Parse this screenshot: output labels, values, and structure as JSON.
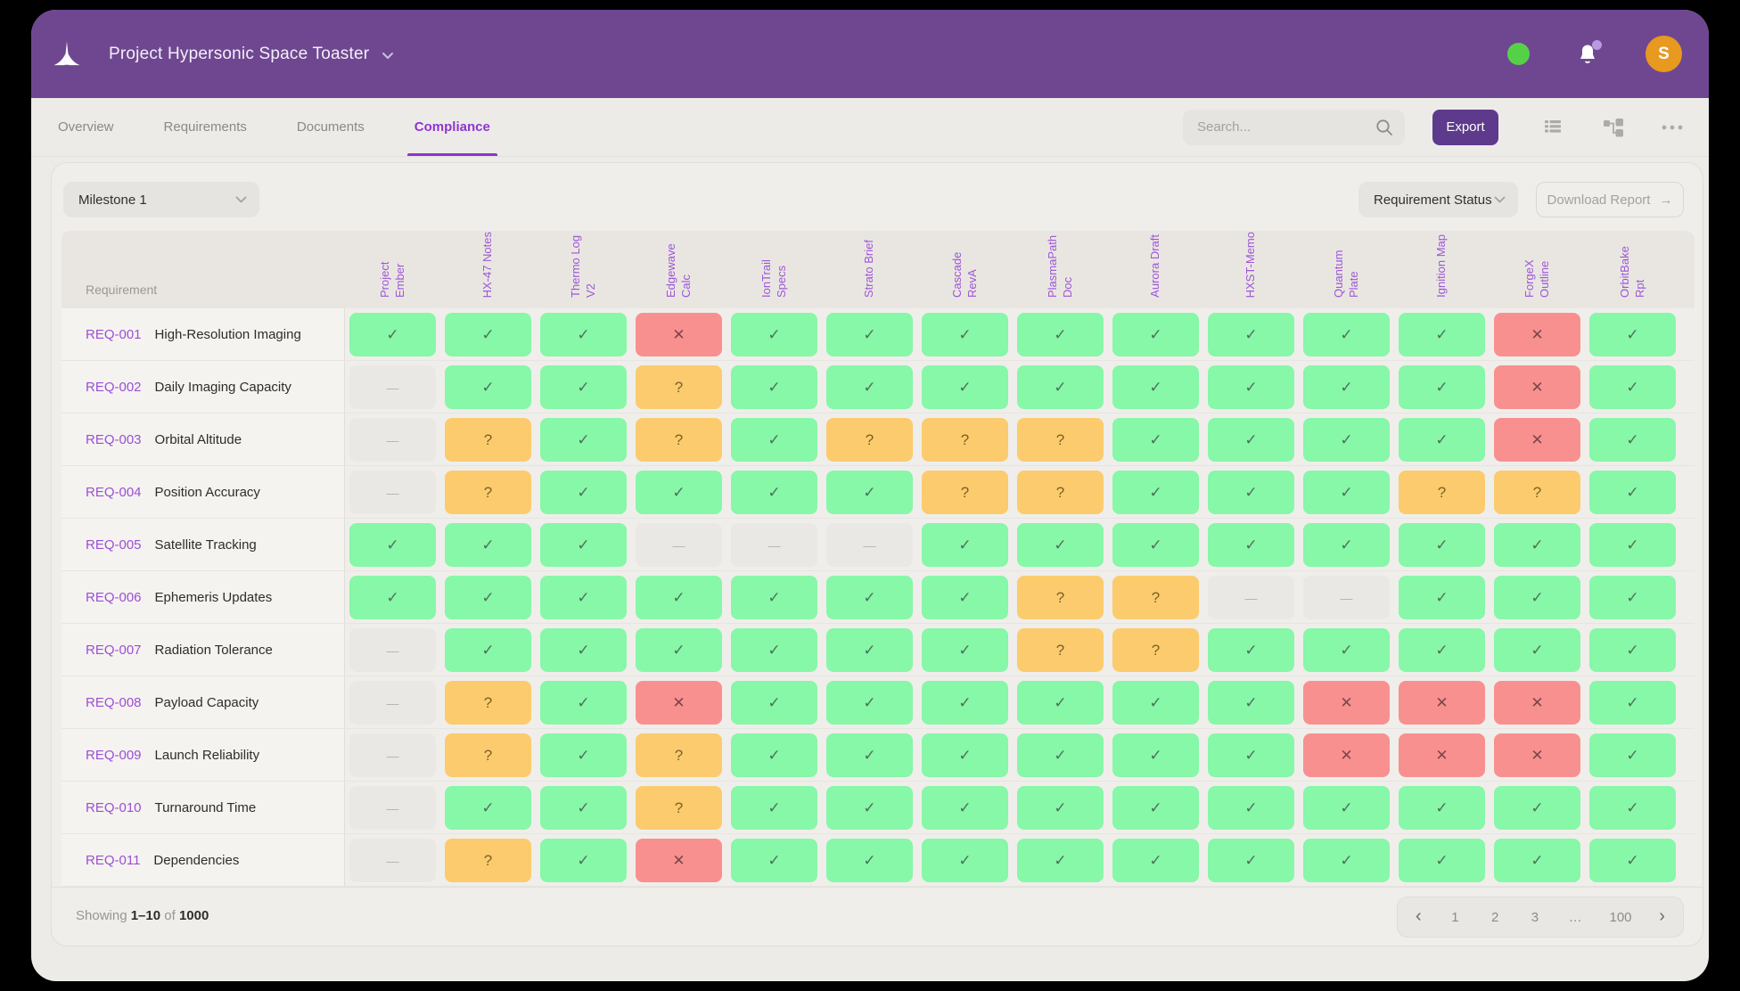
{
  "app": {
    "title": "Project Hypersonic Space Toaster",
    "avatar_initial": "S",
    "colors": {
      "appbar": "#6f4791",
      "accent": "#8e35cf",
      "export": "#5d3a8c",
      "status_dot": "#56d147",
      "avatar": "#e8991f"
    }
  },
  "tabs": [
    {
      "label": "Overview",
      "active": false
    },
    {
      "label": "Requirements",
      "active": false
    },
    {
      "label": "Documents",
      "active": false
    },
    {
      "label": "Compliance",
      "active": true
    }
  ],
  "toolbar": {
    "search_placeholder": "Search...",
    "export_label": "Export"
  },
  "filters": {
    "milestone_value": "Milestone 1",
    "status_filter_value": "Requirement Status",
    "download_label": "Download Report",
    "download_arrow": "→"
  },
  "table": {
    "corner_label": "Requirement",
    "columns": [
      "Project Ember",
      "HX-47 Notes",
      "Thermo Log V2",
      "Edgewave Calc",
      "IonTrail Specs",
      "Strato Brief",
      "Cascade RevA",
      "PlasmaPath Doc",
      "Aurora Draft",
      "HXST-Memo",
      "Quantum Plate",
      "Ignition Map",
      "ForgeX Outline",
      "OrbitBake Rpt"
    ],
    "status_glyphs": {
      "check": "✓",
      "cross": "✕",
      "question": "?",
      "dash": "—"
    },
    "status_colors": {
      "check": "#87f7a8",
      "cross": "#f99090",
      "question": "#fbcb6d",
      "dash": "#eae8e5"
    },
    "rows": [
      {
        "id": "REQ-001",
        "name": "High-Resolution Imaging",
        "statuses": [
          "check",
          "check",
          "check",
          "cross",
          "check",
          "check",
          "check",
          "check",
          "check",
          "check",
          "check",
          "check",
          "cross",
          "check"
        ]
      },
      {
        "id": "REQ-002",
        "name": "Daily Imaging Capacity",
        "statuses": [
          "dash",
          "check",
          "check",
          "question",
          "check",
          "check",
          "check",
          "check",
          "check",
          "check",
          "check",
          "check",
          "cross",
          "check"
        ]
      },
      {
        "id": "REQ-003",
        "name": "Orbital Altitude",
        "statuses": [
          "dash",
          "question",
          "check",
          "question",
          "check",
          "question",
          "question",
          "question",
          "check",
          "check",
          "check",
          "check",
          "cross",
          "check"
        ]
      },
      {
        "id": "REQ-004",
        "name": "Position Accuracy",
        "statuses": [
          "dash",
          "question",
          "check",
          "check",
          "check",
          "check",
          "question",
          "question",
          "check",
          "check",
          "check",
          "question",
          "question",
          "check"
        ]
      },
      {
        "id": "REQ-005",
        "name": "Satellite Tracking",
        "statuses": [
          "check",
          "check",
          "check",
          "dash",
          "dash",
          "dash",
          "check",
          "check",
          "check",
          "check",
          "check",
          "check",
          "check",
          "check"
        ]
      },
      {
        "id": "REQ-006",
        "name": "Ephemeris Updates",
        "statuses": [
          "check",
          "check",
          "check",
          "check",
          "check",
          "check",
          "check",
          "question",
          "question",
          "dash",
          "dash",
          "check",
          "check",
          "check"
        ]
      },
      {
        "id": "REQ-007",
        "name": "Radiation Tolerance",
        "statuses": [
          "dash",
          "check",
          "check",
          "check",
          "check",
          "check",
          "check",
          "question",
          "question",
          "check",
          "check",
          "check",
          "check",
          "check"
        ]
      },
      {
        "id": "REQ-008",
        "name": "Payload Capacity",
        "statuses": [
          "dash",
          "question",
          "check",
          "cross",
          "check",
          "check",
          "check",
          "check",
          "check",
          "check",
          "cross",
          "cross",
          "cross",
          "check"
        ]
      },
      {
        "id": "REQ-009",
        "name": "Launch Reliability",
        "statuses": [
          "dash",
          "question",
          "check",
          "question",
          "check",
          "check",
          "check",
          "check",
          "check",
          "check",
          "cross",
          "cross",
          "cross",
          "check"
        ]
      },
      {
        "id": "REQ-010",
        "name": "Turnaround Time",
        "statuses": [
          "dash",
          "check",
          "check",
          "question",
          "check",
          "check",
          "check",
          "check",
          "check",
          "check",
          "check",
          "check",
          "check",
          "check"
        ]
      },
      {
        "id": "REQ-011",
        "name": "Dependencies",
        "statuses": [
          "dash",
          "question",
          "check",
          "cross",
          "check",
          "check",
          "check",
          "check",
          "check",
          "check",
          "check",
          "check",
          "check",
          "check"
        ]
      }
    ]
  },
  "footer": {
    "showing_prefix": "Showing",
    "range": "1–10",
    "of_word": "of",
    "total": "1000",
    "pages": [
      "1",
      "2",
      "3",
      "…",
      "100"
    ],
    "prev": "‹",
    "next": "›"
  }
}
